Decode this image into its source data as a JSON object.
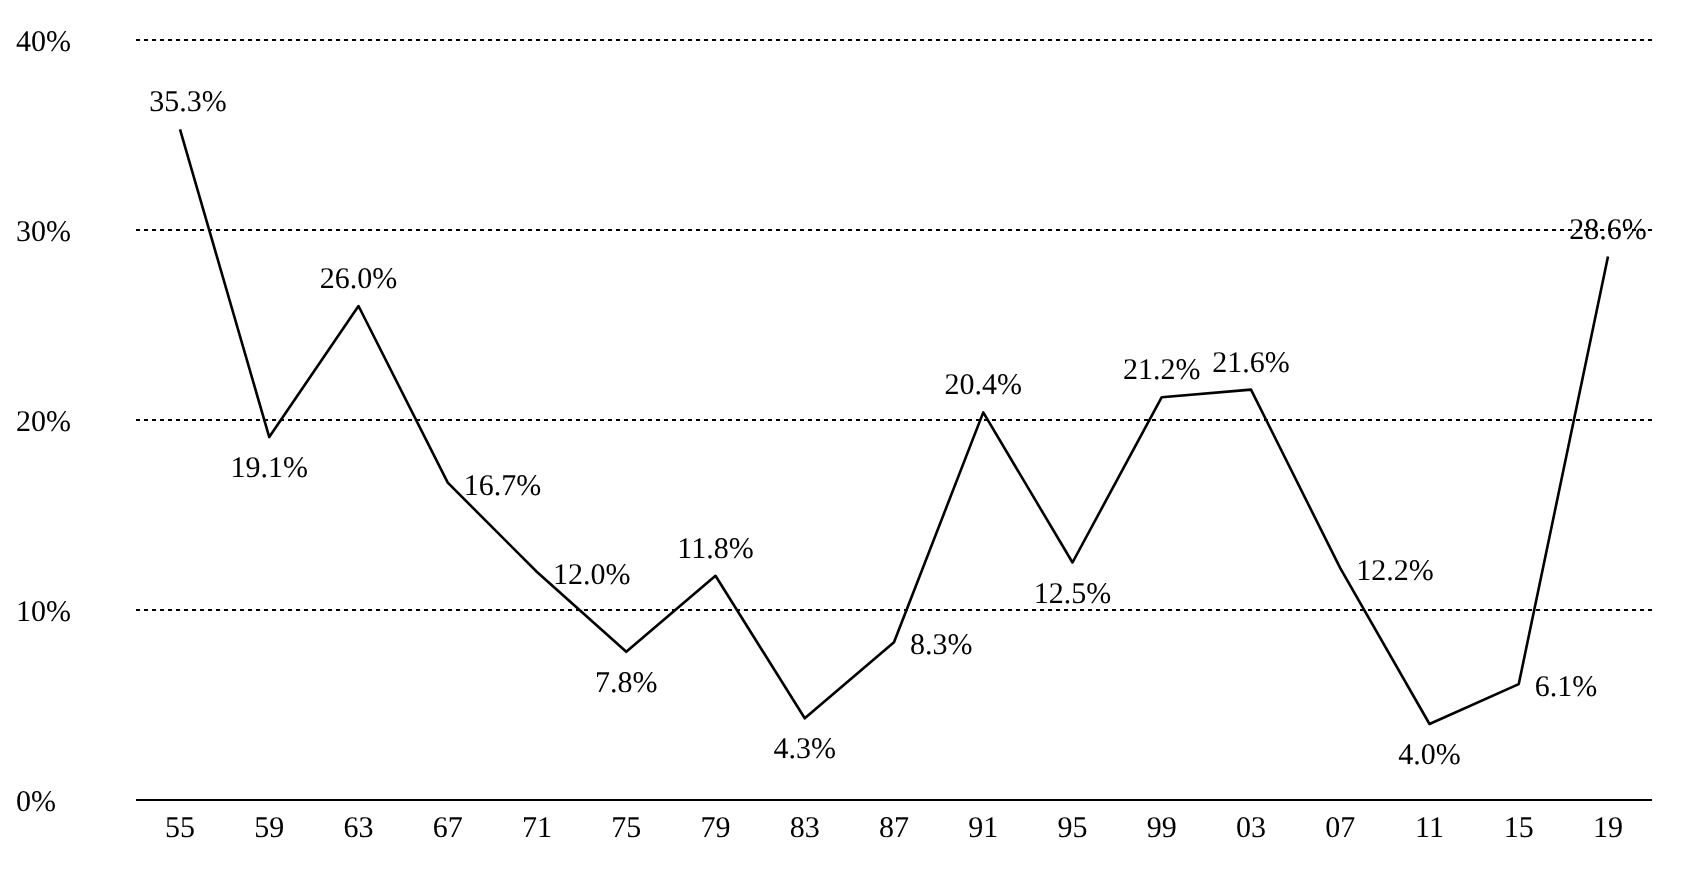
{
  "chart_data": {
    "type": "line",
    "categories": [
      "55",
      "59",
      "63",
      "67",
      "71",
      "75",
      "79",
      "83",
      "87",
      "91",
      "95",
      "99",
      "03",
      "07",
      "11",
      "15",
      "19"
    ],
    "series": [
      {
        "color": "#000000",
        "values": [
          35.3,
          19.1,
          26.0,
          16.7,
          12.0,
          7.8,
          11.8,
          4.3,
          8.3,
          20.4,
          12.5,
          21.2,
          21.6,
          12.2,
          4.0,
          6.1,
          28.6
        ],
        "value_labels": [
          "35.3%",
          "19.1%",
          "26.0%",
          "16.7%",
          "12.0%",
          "7.8%",
          "11.8%",
          "4.3%",
          "8.3%",
          "20.4%",
          "12.5%",
          "21.2%",
          "21.6%",
          "12.2%",
          "4.0%",
          "6.1%",
          "28.6%"
        ]
      }
    ],
    "ylim": [
      0,
      40
    ],
    "yticks": [
      {
        "value": 0,
        "label": "0%"
      },
      {
        "value": 10,
        "label": "10%"
      },
      {
        "value": 20,
        "label": "20%"
      },
      {
        "value": 30,
        "label": "30%"
      },
      {
        "value": 40,
        "label": "40%"
      }
    ],
    "grid": "y",
    "legend": false,
    "marker": "none",
    "line_style": "solid"
  }
}
